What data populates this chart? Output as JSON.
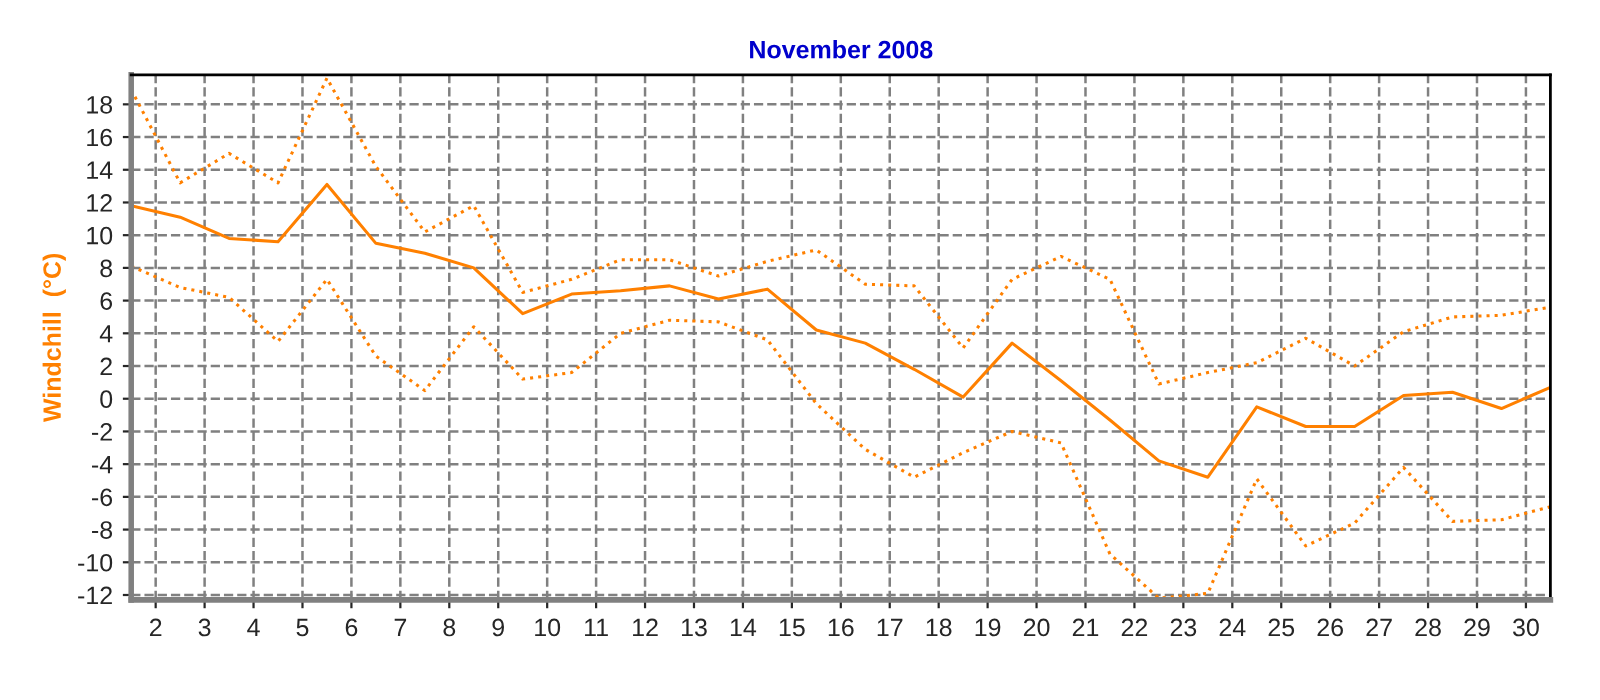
{
  "chart_data": {
    "type": "line",
    "title": "November 2008",
    "ylabel": "Windchill  (°C)",
    "x": [
      1.5,
      2.5,
      3.5,
      4.5,
      5.5,
      6.5,
      7.5,
      8.5,
      9.5,
      10.5,
      11.5,
      12.5,
      13.5,
      14.5,
      15.5,
      16.5,
      17.5,
      18.5,
      19.5,
      20.5,
      21.5,
      22.5,
      23.5,
      24.5,
      25.5,
      26.5,
      27.5,
      28.5,
      29.5,
      30.5
    ],
    "series": [
      {
        "color": "#ff8000",
        "line_style": "dotted",
        "values": [
          18.9,
          13.2,
          15.0,
          13.2,
          19.6,
          14.2,
          10.2,
          11.8,
          6.5,
          7.3,
          8.5,
          8.5,
          7.5,
          8.4,
          9.1,
          7.0,
          6.9,
          3.1,
          7.3,
          8.7,
          7.3,
          0.9,
          1.6,
          2.2,
          3.7,
          2.0,
          4.1,
          5.0,
          5.1,
          5.6
        ]
      },
      {
        "color": "#ff8000",
        "line_style": "solid",
        "values": [
          11.8,
          11.1,
          9.8,
          9.6,
          13.1,
          9.5,
          8.9,
          8.0,
          5.2,
          6.4,
          6.6,
          6.9,
          6.1,
          6.7,
          4.2,
          3.4,
          1.8,
          0.1,
          3.4,
          1.1,
          -1.3,
          -3.8,
          -4.8,
          -0.5,
          -1.7,
          -1.7,
          0.2,
          0.4,
          -0.6,
          0.7
        ]
      },
      {
        "color": "#ff8000",
        "line_style": "dotted",
        "values": [
          8.1,
          6.8,
          6.2,
          3.5,
          7.3,
          2.6,
          0.5,
          4.4,
          1.2,
          1.6,
          4.0,
          4.8,
          4.7,
          3.6,
          -0.3,
          -3.1,
          -4.8,
          -3.3,
          -2.0,
          -2.7,
          -9.5,
          -12.2,
          -11.9,
          -4.9,
          -9.0,
          -7.6,
          -4.2,
          -7.5,
          -7.4,
          -6.6
        ]
      }
    ],
    "xlim": [
      1.5,
      30.5
    ],
    "xticks": [
      2,
      3,
      4,
      5,
      6,
      7,
      8,
      9,
      10,
      11,
      12,
      13,
      14,
      15,
      16,
      17,
      18,
      19,
      20,
      21,
      22,
      23,
      24,
      25,
      26,
      27,
      28,
      29,
      30
    ],
    "ylim": [
      -12.3,
      19.8
    ],
    "yticks": [
      -12,
      -10,
      -8,
      -6,
      -4,
      -2,
      0,
      2,
      4,
      6,
      8,
      10,
      12,
      14,
      16,
      18
    ],
    "grid": true,
    "legend": false
  }
}
